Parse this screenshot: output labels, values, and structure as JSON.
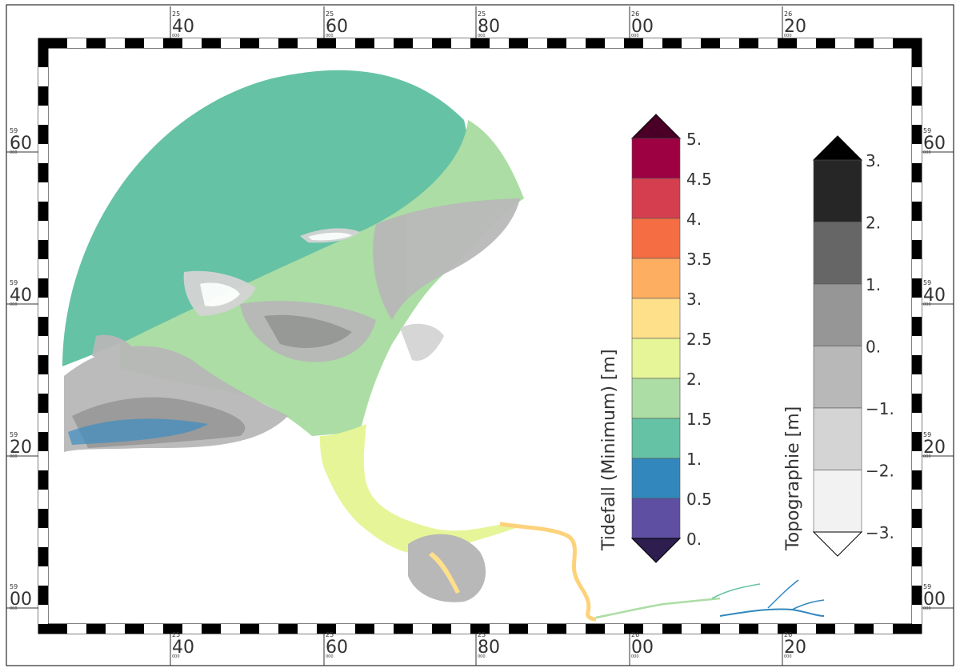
{
  "map": {
    "coord_ticks": {
      "top": [
        {
          "sup": "25",
          "main": "40",
          "sub": "000"
        },
        {
          "sup": "25",
          "main": "60",
          "sub": "000"
        },
        {
          "sup": "25",
          "main": "80",
          "sub": "000"
        },
        {
          "sup": "26",
          "main": "00",
          "sub": "000"
        },
        {
          "sup": "26",
          "main": "20",
          "sub": "000"
        }
      ],
      "bottom": [
        {
          "sup": "25",
          "main": "40",
          "sub": "000"
        },
        {
          "sup": "25",
          "main": "60",
          "sub": "000"
        },
        {
          "sup": "25",
          "main": "80",
          "sub": "000"
        },
        {
          "sup": "26",
          "main": "00",
          "sub": "000"
        },
        {
          "sup": "26",
          "main": "20",
          "sub": "000"
        }
      ],
      "left": [
        {
          "sup": "59",
          "main": "60",
          "sub": "000"
        },
        {
          "sup": "59",
          "main": "40",
          "sub": "000"
        },
        {
          "sup": "59",
          "main": "20",
          "sub": "000"
        },
        {
          "sup": "59",
          "main": "00",
          "sub": "000"
        }
      ],
      "right": [
        {
          "sup": "59",
          "main": "60",
          "sub": "000"
        },
        {
          "sup": "59",
          "main": "40",
          "sub": "000"
        },
        {
          "sup": "59",
          "main": "20",
          "sub": "000"
        },
        {
          "sup": "59",
          "main": "00",
          "sub": "000"
        }
      ]
    },
    "legend_tidefall": {
      "title": "Tidefall (Minimum) [m]",
      "labels": [
        "5.",
        "4.5",
        "4.",
        "3.5",
        "3.",
        "2.5",
        "2.",
        "1.5",
        "1.",
        "0.5",
        "0."
      ],
      "colors": [
        "#5e4fa2",
        "#3288bd",
        "#66c2a5",
        "#abdda4",
        "#e6f598",
        "#fee08b",
        "#fdae61",
        "#f46d43",
        "#d53e4f",
        "#9e0142"
      ],
      "over_color": "#4a0026",
      "under_color": "#2d1e4f"
    },
    "legend_topography": {
      "title": "Topographie [m]",
      "labels": [
        "3.",
        "2.",
        "1.",
        "0.",
        "−1.",
        "−2.",
        "−3."
      ],
      "colors": [
        "#f2f2f2",
        "#d4d4d4",
        "#b8b8b8",
        "#969696",
        "#666666",
        "#262626"
      ],
      "over_color": "#000000",
      "under_color": "#ffffff"
    }
  }
}
